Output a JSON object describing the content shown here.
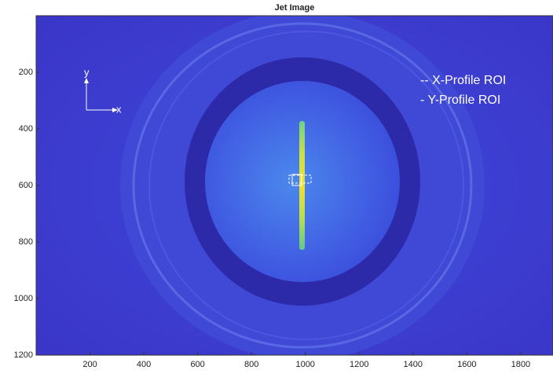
{
  "chart_data": {
    "type": "image",
    "title": "Jet Image",
    "xlim": [
      0,
      1920
    ],
    "xticks": [
      200,
      400,
      600,
      800,
      1000,
      1200,
      1400,
      1600,
      1800
    ],
    "ylim": [
      0,
      1200
    ],
    "yticks": [
      200,
      400,
      600,
      800,
      1000,
      1200
    ],
    "y_reversed": true,
    "annotations": [
      "-- X-Profile ROI",
      "- Y-Profile ROI",
      "y",
      "x"
    ]
  }
}
